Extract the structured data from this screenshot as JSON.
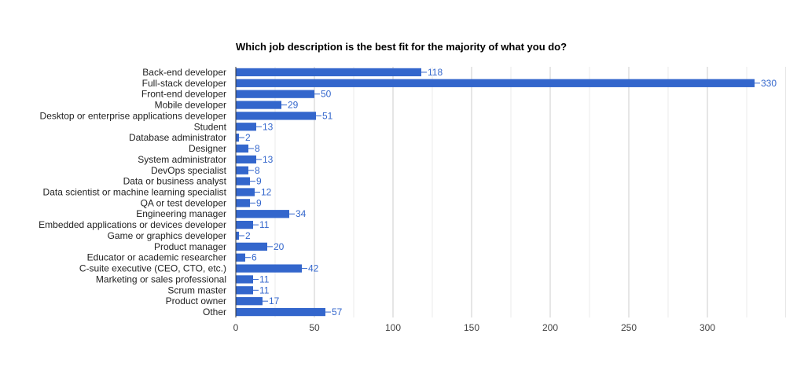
{
  "chart_data": {
    "type": "bar",
    "orientation": "horizontal",
    "title": "Which job description is the best fit for the majority of what you do?",
    "categories": [
      "Back-end developer",
      "Full-stack developer",
      "Front-end developer",
      "Mobile developer",
      "Desktop or enterprise applications developer",
      "Student",
      "Database administrator",
      "Designer",
      "System administrator",
      "DevOps specialist",
      "Data or business analyst",
      "Data scientist or machine learning specialist",
      "QA or test developer",
      "Engineering manager",
      "Embedded applications or devices developer",
      "Game or graphics developer",
      "Product manager",
      "Educator or academic researcher",
      "C-suite executive (CEO, CTO, etc.)",
      "Marketing or sales professional",
      "Scrum master",
      "Product owner",
      "Other"
    ],
    "values": [
      118,
      330,
      50,
      29,
      51,
      13,
      2,
      8,
      13,
      8,
      9,
      12,
      9,
      34,
      11,
      2,
      20,
      6,
      42,
      11,
      11,
      17,
      57
    ],
    "x_ticks": [
      "0",
      "50",
      "100",
      "150",
      "200",
      "250",
      "300"
    ],
    "xlim": [
      0,
      350
    ],
    "grid": true,
    "legend": "none",
    "bar_color": "#3366cc",
    "label_color": "#3366cc",
    "grid_color": "#dddddd",
    "axis_color": "#333333"
  }
}
